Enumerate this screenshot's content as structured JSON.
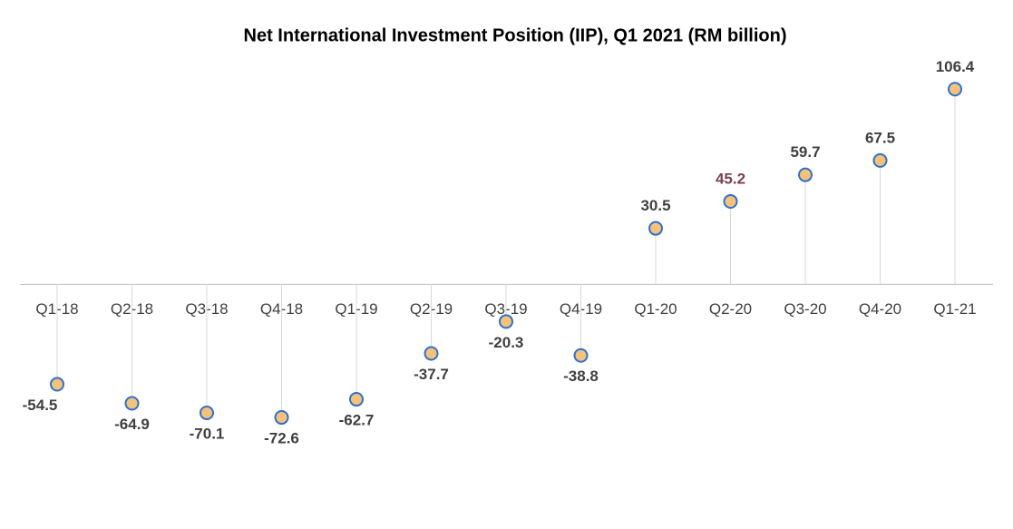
{
  "chart_data": {
    "type": "line",
    "title": "Net International Investment Position (IIP), Q1 2021 (RM billion)",
    "categories": [
      "Q1-18",
      "Q2-18",
      "Q3-18",
      "Q4-18",
      "Q1-19",
      "Q2-19",
      "Q3-19",
      "Q4-19",
      "Q1-20",
      "Q2-20",
      "Q3-20",
      "Q4-20",
      "Q1-21"
    ],
    "series": [
      {
        "name": "Net IIP",
        "color": "#1a73c0",
        "values": [
          -54.5,
          -64.9,
          -70.1,
          -72.6,
          -62.7,
          -37.7,
          -20.3,
          -38.8,
          30.5,
          45.2,
          59.7,
          67.5,
          106.4
        ]
      }
    ],
    "marker_color": "#f5c27a",
    "ylim": [
      -80,
      110
    ]
  }
}
